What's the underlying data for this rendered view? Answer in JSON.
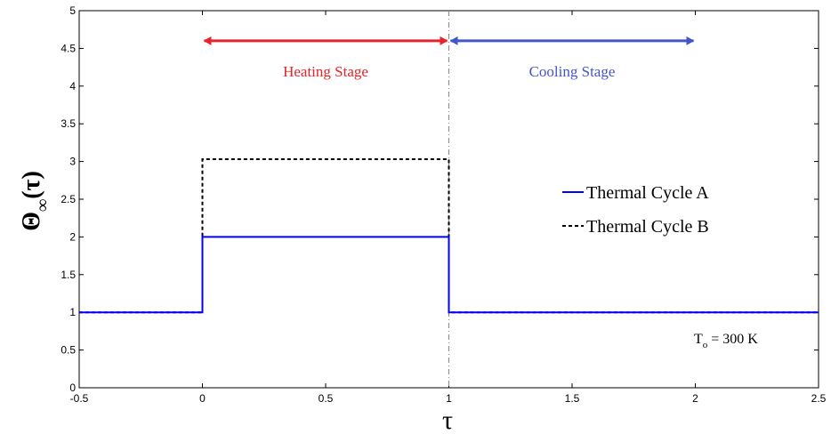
{
  "chart_data": {
    "type": "line",
    "xlim": [
      -0.5,
      2.5
    ],
    "ylim": [
      0,
      5
    ],
    "x_ticks": [
      "-0.5",
      "0",
      "0.5",
      "1",
      "1.5",
      "2",
      "2.5"
    ],
    "y_ticks": [
      "0",
      "0.5",
      "1",
      "1.5",
      "2",
      "2.5",
      "3",
      "3.5",
      "4",
      "4.5",
      "5"
    ],
    "x_tick_values": [
      -0.5,
      0,
      0.5,
      1,
      1.5,
      2,
      2.5
    ],
    "y_tick_values": [
      0,
      0.5,
      1,
      1.5,
      2,
      2.5,
      3,
      3.5,
      4,
      4.5,
      5
    ],
    "xlabel": "τ",
    "ylabel": {
      "main": "Θ",
      "sub": "∞",
      "arg": "(τ)"
    },
    "grid": false,
    "legend_position": "center-right",
    "series": [
      {
        "name": "Thermal Cycle A",
        "color": "#0000ff",
        "style": "solid",
        "x": [
          -0.5,
          0,
          0,
          1,
          1,
          2.5
        ],
        "y": [
          1,
          1,
          2,
          2,
          1,
          1
        ]
      },
      {
        "name": "Thermal Cycle B",
        "color": "#000000",
        "style": "dashed",
        "x": [
          -0.5,
          0,
          0,
          1,
          1,
          2.5
        ],
        "y": [
          1,
          1,
          3.03,
          3.03,
          1,
          1
        ]
      }
    ],
    "vline": {
      "x": 1,
      "style": "dash-dot",
      "color": "#888888"
    },
    "annotations": [
      {
        "text": "Heating Stage",
        "color": "#e8232b",
        "arrow_from": 0,
        "arrow_to": 1,
        "y": 4.6,
        "label_y": 4.2
      },
      {
        "text": "Cooling Stage",
        "color": "#4455cc",
        "arrow_from": 1,
        "arrow_to": 2,
        "y": 4.6,
        "label_y": 4.2
      }
    ],
    "note": {
      "main": "T",
      "sub": "o",
      "rest": " = 300 K",
      "y": 0.6
    }
  }
}
